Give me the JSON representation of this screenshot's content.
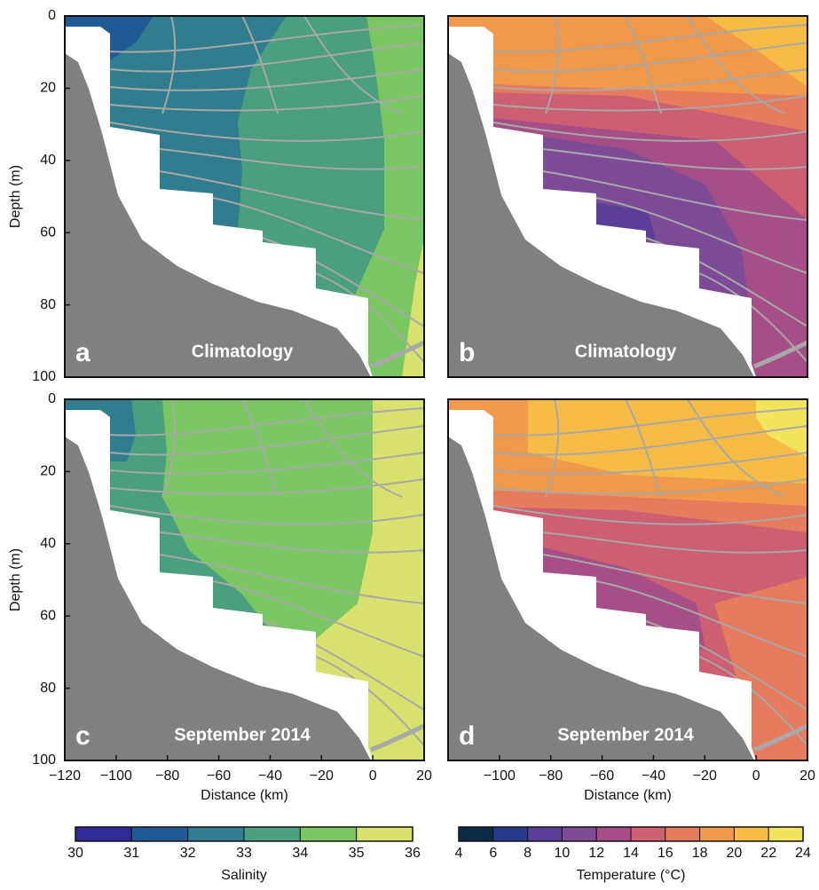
{
  "chart_data": [
    {
      "type": "contour",
      "label": "a",
      "title": "Climatology",
      "ylabel": "Depth (m)",
      "xlim": [
        -120,
        20
      ],
      "ylim": [
        100,
        0
      ],
      "yticks": [
        0,
        20,
        40,
        60,
        80,
        100
      ]
    },
    {
      "type": "contour",
      "label": "b",
      "title": "Climatology",
      "xlim": [
        -120,
        20
      ],
      "ylim": [
        100,
        0
      ]
    },
    {
      "type": "contour",
      "label": "c",
      "title": "September 2014",
      "ylabel": "Depth (m)",
      "xlabel": "Distance (km)",
      "xlim": [
        -120,
        20
      ],
      "ylim": [
        100,
        0
      ],
      "yticks": [
        0,
        20,
        40,
        60,
        80,
        100
      ],
      "xticks": [
        {
          "value": -120,
          "label": "−120"
        },
        {
          "value": -100,
          "label": "−100"
        },
        {
          "value": -80,
          "label": "−80"
        },
        {
          "value": -60,
          "label": "−60"
        },
        {
          "value": -40,
          "label": "−40"
        },
        {
          "value": -20,
          "label": "−20"
        },
        0,
        20
      ]
    },
    {
      "type": "contour",
      "label": "d",
      "title": "September 2014",
      "xlabel": "Distance (km)",
      "xlim": [
        -120,
        20
      ],
      "ylim": [
        100,
        0
      ],
      "xticks": [
        {
          "value": -100,
          "label": "−100"
        },
        {
          "value": -80,
          "label": "−80"
        },
        {
          "value": -60,
          "label": "−60"
        },
        {
          "value": -40,
          "label": "−40"
        },
        {
          "value": -20,
          "label": "−20"
        },
        0,
        20
      ]
    },
    {
      "type": "colorbar",
      "label": "Salinity",
      "ticks": [
        30,
        31,
        32,
        33,
        34,
        35,
        36
      ],
      "colors": [
        "#2e2a96",
        "#1f5a94",
        "#2f7d8f",
        "#4aa07e",
        "#7ac663",
        "#d8e06e"
      ]
    },
    {
      "type": "colorbar",
      "label": "Temperature (°C)",
      "ticks": [
        4,
        6,
        8,
        10,
        12,
        14,
        16,
        18,
        20,
        22,
        24
      ],
      "colors": [
        "#0d2b45",
        "#2a3a8f",
        "#5a3e98",
        "#7d4b96",
        "#a54e88",
        "#cc5f72",
        "#e67b5e",
        "#f29a4c",
        "#f7bc45",
        "#f3e45e"
      ]
    }
  ]
}
